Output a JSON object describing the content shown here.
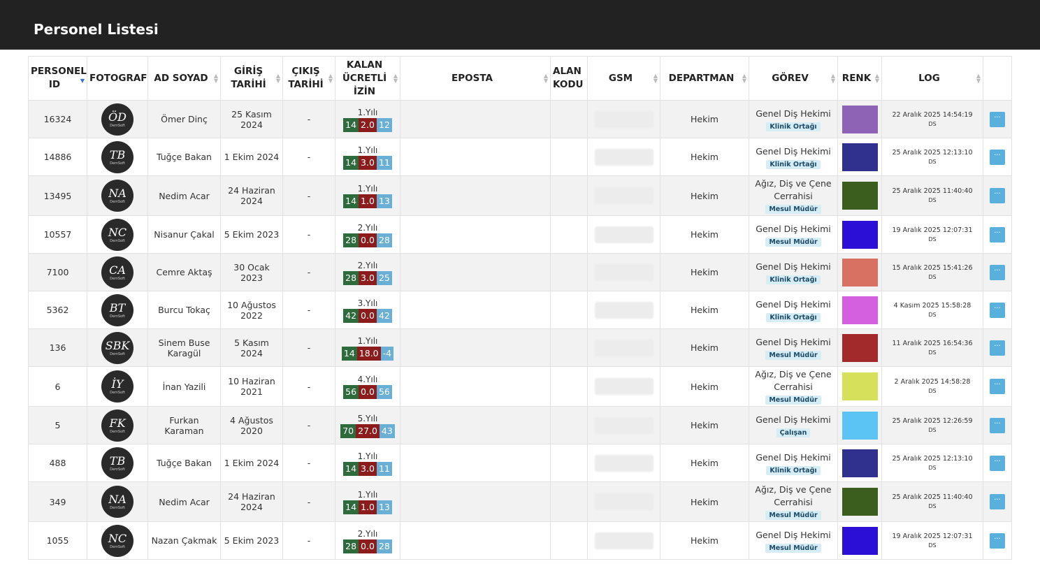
{
  "header": {
    "title": "Personel Listesi"
  },
  "table": {
    "columns": [
      "PERSONEL ID",
      "FOTOGRAF",
      "AD SOYAD",
      "GİRİŞ TARİHİ",
      "ÇIKIŞ TARİHİ",
      "KALAN ÜCRETLİ İZİN",
      "EPOSTA",
      "ALAN KODU",
      "GSM",
      "DEPARTMAN",
      "GÖREV",
      "RENK",
      "LOG"
    ],
    "photo_brand": "DemSoft",
    "rows": [
      {
        "id": 16324,
        "initials": "ÖD",
        "name": "Ömer Dinç",
        "start": "25 Kasım 2024",
        "end": "-",
        "leave_year": "1.Yılı",
        "leave_total": 14,
        "leave_used": "2.0",
        "leave_left": 12,
        "department": "Hekim",
        "role": "Genel Diş Hekimi",
        "badge": "Klinik Ortağı",
        "color": "#8e62b5",
        "log": "22 Aralık 2025 14:54:19",
        "log_user": "DS"
      },
      {
        "id": 14886,
        "initials": "TB",
        "name": "Tuğçe Bakan",
        "start": "1 Ekim 2024",
        "end": "-",
        "leave_year": "1.Yılı",
        "leave_total": 14,
        "leave_used": "3.0",
        "leave_left": 11,
        "department": "Hekim",
        "role": "Genel Diş Hekimi",
        "badge": "Klinik Ortağı",
        "color": "#30318f",
        "log": "25 Aralık 2025 12:13:10",
        "log_user": "DS"
      },
      {
        "id": 13495,
        "initials": "NA",
        "name": "Nedim Acar",
        "start": "24 Haziran 2024",
        "end": "-",
        "leave_year": "1.Yılı",
        "leave_total": 14,
        "leave_used": "1.0",
        "leave_left": 13,
        "department": "Hekim",
        "role": "Ağız, Diş ve Çene Cerrahisi",
        "badge": "Mesul Müdür",
        "color": "#3b5e1f",
        "log": "25 Aralık 2025 11:40:40",
        "log_user": "DS"
      },
      {
        "id": 10557,
        "initials": "NC",
        "name": "Nisanur Çakal",
        "start": "5 Ekim 2023",
        "end": "-",
        "leave_year": "2.Yılı",
        "leave_total": 28,
        "leave_used": "0.0",
        "leave_left": 28,
        "department": "Hekim",
        "role": "Genel Diş Hekimi",
        "badge": "Mesul Müdür",
        "color": "#2b0fd6",
        "log": "19 Aralık 2025 12:07:31",
        "log_user": "DS"
      },
      {
        "id": 7100,
        "initials": "CA",
        "name": "Cemre Aktaş",
        "start": "30 Ocak 2023",
        "end": "-",
        "leave_year": "2.Yılı",
        "leave_total": 28,
        "leave_used": "3.0",
        "leave_left": 25,
        "department": "Hekim",
        "role": "Genel Diş Hekimi",
        "badge": "Klinik Ortağı",
        "color": "#d87161",
        "log": "15 Aralık 2025 15:41:26",
        "log_user": "DS"
      },
      {
        "id": 5362,
        "initials": "BT",
        "name": "Burcu Tokaç",
        "start": "10 Ağustos 2022",
        "end": "-",
        "leave_year": "3.Yılı",
        "leave_total": 42,
        "leave_used": "0.0",
        "leave_left": 42,
        "department": "Hekim",
        "role": "Genel Diş Hekimi",
        "badge": "Klinik Ortağı",
        "color": "#d460e0",
        "log": "4 Kasım 2025 15:58:28",
        "log_user": "DS"
      },
      {
        "id": 136,
        "initials": "SBK",
        "name": "Sinem Buse Karagül",
        "start": "5 Kasım 2024",
        "end": "-",
        "leave_year": "1.Yılı",
        "leave_total": 14,
        "leave_used": "18.0",
        "leave_left": -4,
        "department": "Hekim",
        "role": "Genel Diş Hekimi",
        "badge": "Mesul Müdür",
        "color": "#a32a2b",
        "log": "11 Aralık 2025 16:54:36",
        "log_user": "DS"
      },
      {
        "id": 6,
        "initials": "İY",
        "name": "İnan Yazili",
        "start": "10 Haziran 2021",
        "end": "-",
        "leave_year": "4.Yılı",
        "leave_total": 56,
        "leave_used": "0.0",
        "leave_left": 56,
        "department": "Hekim",
        "role": "Ağız, Diş ve Çene Cerrahisi",
        "badge": "Mesul Müdür",
        "color": "#d6e05b",
        "log": "2 Aralık 2025 14:58:28",
        "log_user": "DS"
      },
      {
        "id": 5,
        "initials": "FK",
        "name": "Furkan Karaman",
        "start": "4 Ağustos 2020",
        "end": "-",
        "leave_year": "5.Yılı",
        "leave_total": 70,
        "leave_used": "27.0",
        "leave_left": 43,
        "department": "Hekim",
        "role": "Genel Diş Hekimi",
        "badge": "Çalışan",
        "color": "#5cc4f5",
        "log": "25 Aralık 2025 12:26:59",
        "log_user": "DS"
      },
      {
        "id": 488,
        "initials": "TB",
        "name": "Tuğçe Bakan",
        "start": "1 Ekim 2024",
        "end": "-",
        "leave_year": "1.Yılı",
        "leave_total": 14,
        "leave_used": "3.0",
        "leave_left": 11,
        "department": "Hekim",
        "role": "Genel Diş Hekimi",
        "badge": "Klinik Ortağı",
        "color": "#30318f",
        "log": "25 Aralık 2025 12:13:10",
        "log_user": "DS"
      },
      {
        "id": 349,
        "initials": "NA",
        "name": "Nedim Acar",
        "start": "24 Haziran 2024",
        "end": "-",
        "leave_year": "1.Yılı",
        "leave_total": 14,
        "leave_used": "1.0",
        "leave_left": 13,
        "department": "Hekim",
        "role": "Ağız, Diş ve Çene Cerrahisi",
        "badge": "Mesul Müdür",
        "color": "#3b5e1f",
        "log": "25 Aralık 2025 11:40:40",
        "log_user": "DS"
      },
      {
        "id": 1055,
        "initials": "NC",
        "name": "Nazan Çakmak",
        "start": "5 Ekim 2023",
        "end": "-",
        "leave_year": "2.Yılı",
        "leave_total": 28,
        "leave_used": "0.0",
        "leave_left": 28,
        "department": "Hekim",
        "role": "Genel Diş Hekimi",
        "badge": "Mesul Müdür",
        "color": "#2b0fd6",
        "log": "19 Aralık 2025 12:07:31",
        "log_user": "DS"
      }
    ]
  }
}
